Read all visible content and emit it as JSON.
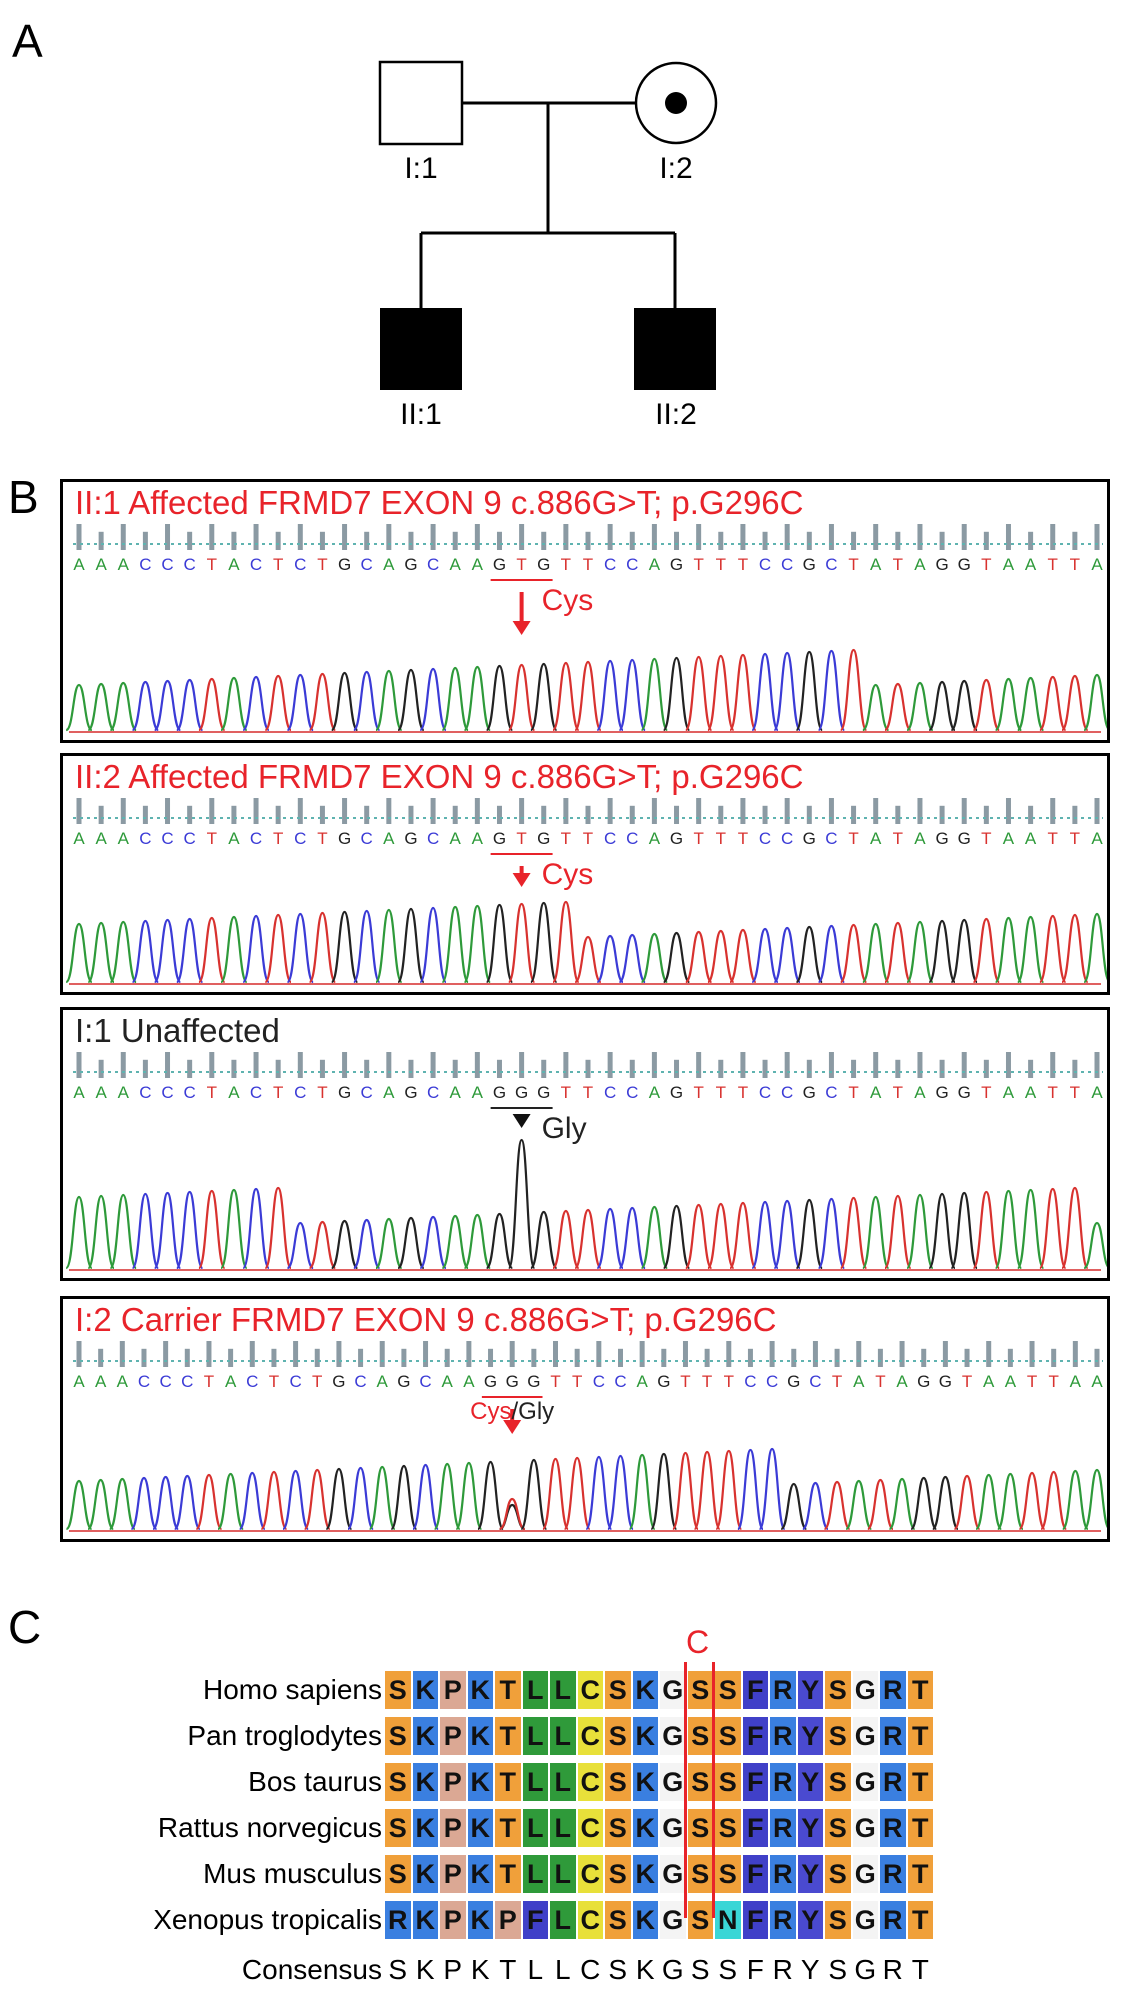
{
  "panels": {
    "a": "A",
    "b": "B",
    "c": "C"
  },
  "pedigree": {
    "members": [
      {
        "id": "I:1",
        "sex": "male",
        "status": "unaffected"
      },
      {
        "id": "I:2",
        "sex": "female",
        "status": "carrier"
      },
      {
        "id": "II:1",
        "sex": "male",
        "status": "affected"
      },
      {
        "id": "II:2",
        "sex": "male",
        "status": "affected"
      }
    ]
  },
  "traces": [
    {
      "title": "II:1 Affected FRMD7 EXON 9 c.886G>T; p.G296C",
      "title_color": "#e8232a",
      "sequence": "AAACCCTACTCTGCAGCAAGTGTTCCAGTTTCCGCTATAGGTAATTA",
      "codon_label": "Cys",
      "codon_label_color": "#e8232a",
      "arrow_color": "#e8232a"
    },
    {
      "title": "II:2 Affected FRMD7 EXON 9 c.886G>T; p.G296C",
      "title_color": "#e8232a",
      "sequence": "AAACCCTACTCTGCAGCAAGTGTTCCAGTTTCCGCTATAGGTAATTA",
      "codon_label": "Cys",
      "codon_label_color": "#e8232a",
      "arrow_color": "#e8232a"
    },
    {
      "title": "I:1 Unaffected",
      "title_color": "#222222",
      "sequence": "AAACCCTACTCTGCAGCAAGGGTTCCAGTTTCCGCTATAGGTAATTA",
      "codon_label": "Gly",
      "codon_label_color": "#222222",
      "arrow_color": "#111111"
    },
    {
      "title": "I:2 Carrier FRMD7 EXON 9 c.886G>T; p.G296C",
      "title_color": "#e8232a",
      "sequence": "AAACCCTACTCTGCAGCAAGGGTTCCAGTTTCCGCTATAGGTAATTAA",
      "codon_label_a": "Cys",
      "codon_label_sep": "/",
      "codon_label_b": "Gly",
      "codon_label_color": "#e8232a",
      "arrow_color": "#e8232a"
    }
  ],
  "base_colors": {
    "A": "#2e9a3a",
    "C": "#3b3bd6",
    "G": "#222222",
    "T": "#d8322f"
  },
  "alignment": {
    "marker_label": "C",
    "marker_color": "#e8232a",
    "rows": [
      {
        "species": "Homo sapiens",
        "residues": "SKPKTLLCSKGSSFRYSGRT"
      },
      {
        "species": "Pan troglodytes",
        "residues": "SKPKTLLCSKGSSFRYSGRT"
      },
      {
        "species": "Bos taurus",
        "residues": "SKPKTLLCSKGSSFRYSGRT"
      },
      {
        "species": "Rattus norvegicus",
        "residues": "SKPKTLLCSKGSSFRYSGRT"
      },
      {
        "species": "Mus musculus",
        "residues": "SKPKTLLCSKGSSFRYSGRT"
      },
      {
        "species": "Xenopus tropicalis",
        "residues": "RKPKPFLCSKGSNFRYSGRT"
      }
    ],
    "consensus_label": "Consensus",
    "consensus": "SKPKTLLCSKGSSFRYSGRT",
    "residue_colors": {
      "S": "#f0a03a",
      "K": "#3a7fe0",
      "P": "#dba894",
      "T": "#f0a03a",
      "L": "#2f9a3a",
      "C": "#e8e03a",
      "G": "#f4f4f4",
      "F": "#4040c8",
      "R": "#3a7fe0",
      "Y": "#4a4ad0",
      "N": "#3ad6d6"
    }
  }
}
